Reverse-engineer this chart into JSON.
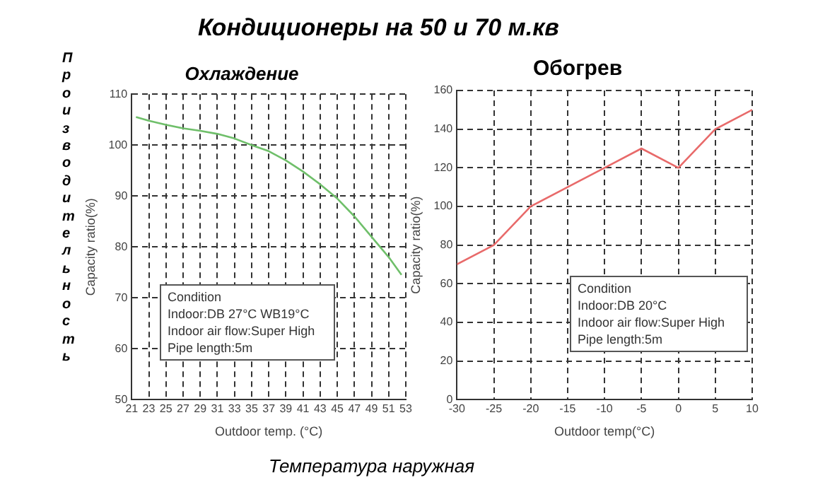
{
  "chart_data": [
    {
      "type": "line",
      "title": "Охлаждение",
      "xlabel": "Outdoor temp. (°C)",
      "ylabel": "Capacity ratio(%)",
      "x": [
        21.5,
        23,
        25,
        27,
        29,
        31,
        33,
        35,
        37,
        39,
        41,
        43,
        45,
        47,
        49,
        51,
        52.5
      ],
      "series": [
        {
          "color": "#6fbf6a",
          "values": [
            105.5,
            104.8,
            104,
            103.3,
            102.8,
            102.2,
            101.3,
            100,
            98.8,
            97,
            94.8,
            92.3,
            89.5,
            86,
            82,
            78,
            74.5
          ]
        }
      ],
      "xlim": [
        21,
        53
      ],
      "xticks": [
        21,
        23,
        25,
        27,
        29,
        31,
        33,
        35,
        37,
        39,
        41,
        43,
        45,
        47,
        49,
        51,
        53
      ],
      "ylim": [
        50,
        110
      ],
      "yticks": [
        50,
        60,
        70,
        80,
        90,
        100,
        110
      ],
      "grid": true,
      "legend": false,
      "marker": "none",
      "annotations": [
        "Condition",
        "Indoor:DB 27°C  WB19°C",
        "Indoor air flow:Super High",
        "Pipe length:5m"
      ]
    },
    {
      "type": "line",
      "title": "Обогрев",
      "xlabel": "Outdoor temp(°C)",
      "ylabel": "Capacity ratio(%)",
      "x": [
        -30,
        -25,
        -20,
        -15,
        -10,
        -5,
        0,
        5,
        10
      ],
      "series": [
        {
          "color": "#e86a6a",
          "values": [
            70,
            80,
            100,
            110,
            120,
            130,
            120,
            140,
            150
          ]
        }
      ],
      "xlim": [
        -30,
        10
      ],
      "xticks": [
        -30,
        -25,
        -20,
        -15,
        -10,
        -5,
        0,
        5,
        10
      ],
      "ylim": [
        0,
        160
      ],
      "yticks": [
        0,
        20,
        40,
        60,
        80,
        100,
        120,
        140,
        160
      ],
      "grid": true,
      "legend": false,
      "marker": "none",
      "annotations": [
        "Condition",
        "Indoor:DB 20°C",
        "Indoor air flow:Super High",
        "Pipe length:5m"
      ]
    },
    {
      "type": "other",
      "title": "Кондиционеры на 50 и 70 м.кв",
      "xlabel": "Температура наружная",
      "ylabel": "Производительность"
    }
  ]
}
